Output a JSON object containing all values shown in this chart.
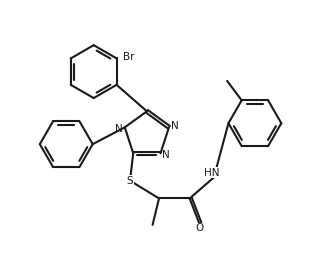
{
  "background": "#ffffff",
  "line_color": "#1a1a1a",
  "line_width": 1.5,
  "font_size": 7.5,
  "figsize": [
    3.26,
    2.69
  ],
  "dpi": 100,
  "xlim": [
    0,
    10
  ],
  "ylim": [
    0,
    8.3
  ]
}
